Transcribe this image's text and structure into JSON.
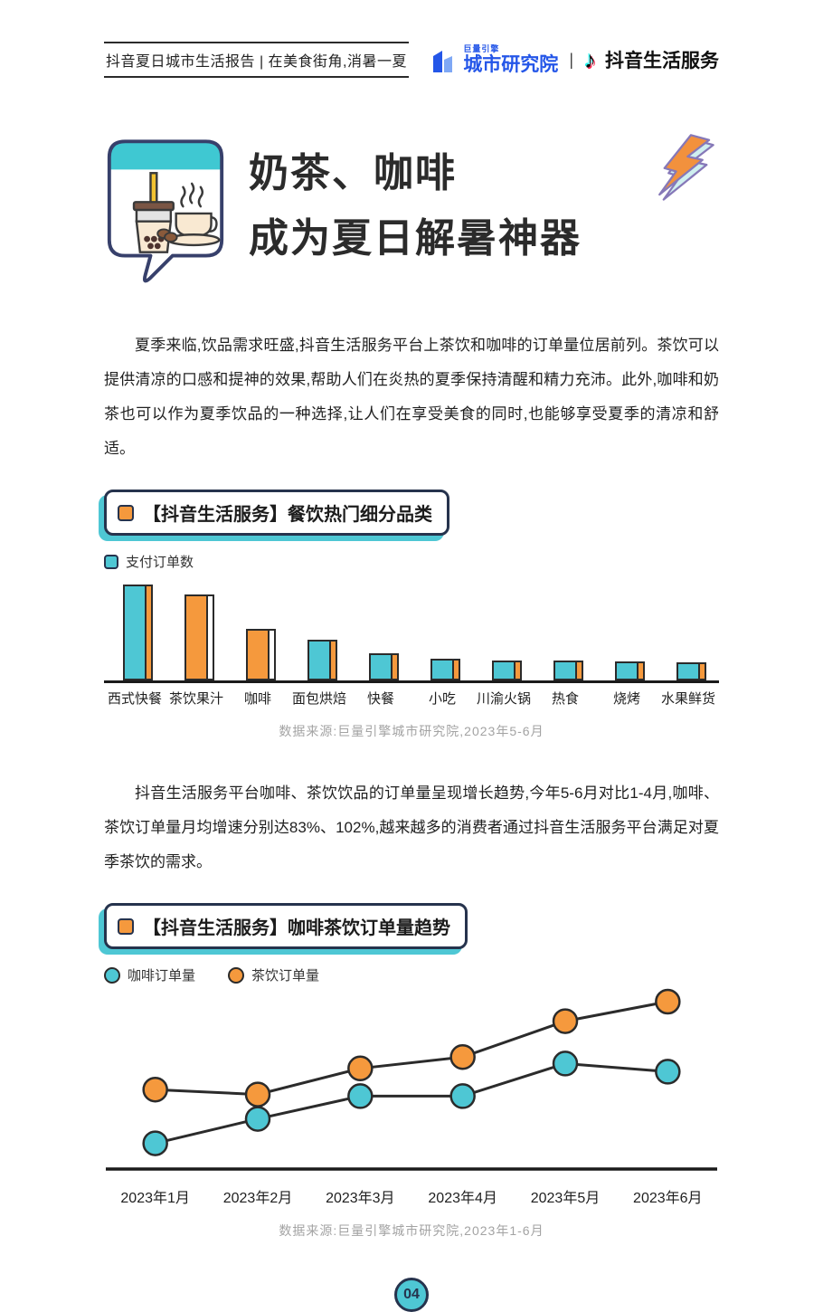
{
  "colors": {
    "teal": "#4EC7D4",
    "orange": "#F5993D",
    "navy": "#26334d",
    "blue": "#2456E8",
    "dark": "#2b2b2b",
    "gray": "#a3a3a3"
  },
  "header": {
    "report_title": "抖音夏日城市生活报告 | 在美食街角,消暑一夏",
    "brand_small": "巨量引擎",
    "brand_name": "城市研究院",
    "divider": "|",
    "tiktok_note_icon": "♪",
    "brand_right": "抖音生活服务"
  },
  "hero": {
    "title_line1": "奶茶、咖啡",
    "title_line2": "成为夏日解暑神器",
    "bubble_icon": "milk-tea-and-coffee-speech-bubble",
    "bolt_icon": "lightning-bolt"
  },
  "paragraphs": {
    "p1": "夏季来临,饮品需求旺盛,抖音生活服务平台上茶饮和咖啡的订单量位居前列。茶饮可以提供清凉的口感和提神的效果,帮助人们在炎热的夏季保持清醒和精力充沛。此外,咖啡和奶茶也可以作为夏季饮品的一种选择,让人们在享受美食的同时,也能够享受夏季的清凉和舒适。",
    "p2": "抖音生活服务平台咖啡、茶饮饮品的订单量呈现增长趋势,今年5-6月对比1-4月,咖啡、茶饮订单量月均增速分别达83%、102%,越来越多的消费者通过抖音生活服务平台满足对夏季茶饮的需求。"
  },
  "chart_data": [
    {
      "type": "bar",
      "title": "【抖音生活服务】餐饮热门细分品类",
      "legend": [
        "支付订单数"
      ],
      "categories": [
        "西式快餐",
        "茶饮果汁",
        "咖啡",
        "面包烘焙",
        "快餐",
        "小吃",
        "川渝火锅",
        "热食",
        "烧烤",
        "水果鲜货"
      ],
      "values": [
        100,
        90,
        54,
        42,
        28,
        23,
        21,
        21,
        20,
        19
      ],
      "unit": "relative-order-index (no numeric axis shown)",
      "bar_colors": [
        "teal",
        "orange",
        "orange",
        "teal",
        "teal",
        "teal",
        "teal",
        "teal",
        "teal",
        "teal"
      ],
      "ylabel": "",
      "xlabel": "",
      "grid": false,
      "source": "数据来源:巨量引擎城市研究院,2023年5-6月"
    },
    {
      "type": "line",
      "title": "【抖音生活服务】咖啡茶饮订单量趋势",
      "x": [
        "2023年1月",
        "2023年2月",
        "2023年3月",
        "2023年4月",
        "2023年5月",
        "2023年6月"
      ],
      "series": [
        {
          "name": "咖啡订单量",
          "color": "teal",
          "values": [
            13,
            28,
            42,
            42,
            62,
            57
          ]
        },
        {
          "name": "茶饮订单量",
          "color": "orange",
          "values": [
            46,
            43,
            59,
            66,
            88,
            100
          ]
        }
      ],
      "unit": "relative-order-index (no numeric axis shown)",
      "grid": false,
      "legend_position": "top-left",
      "source": "数据来源:巨量引擎城市研究院,2023年1-6月"
    }
  ],
  "footer": {
    "page_number": "04"
  }
}
